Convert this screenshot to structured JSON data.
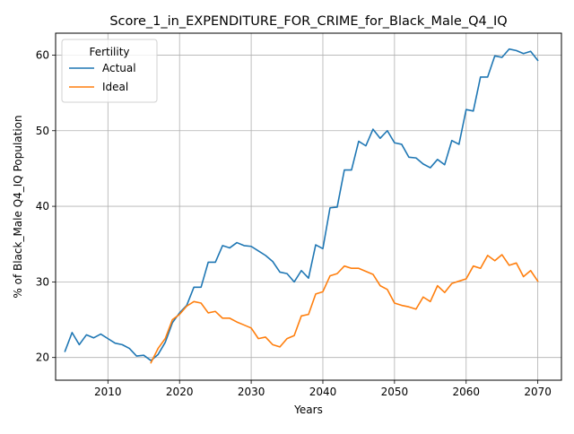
{
  "chart_data": {
    "type": "line",
    "title": "Score_1_in_EXPENDITURE_FOR_CRIME_for_Black_Male_Q4_IQ",
    "xlabel": "Years",
    "ylabel": "% of Black_Male Q4_IQ Population",
    "xlim": [
      2002.7,
      2073.3
    ],
    "ylim": [
      17.0,
      62.9
    ],
    "xticks": [
      2010,
      2020,
      2030,
      2040,
      2050,
      2060,
      2070
    ],
    "yticks": [
      20,
      30,
      40,
      50,
      60
    ],
    "grid": true,
    "legend": {
      "title": "Fertility",
      "placement": "upper left"
    },
    "x": [
      2004,
      2005,
      2006,
      2007,
      2008,
      2009,
      2010,
      2011,
      2012,
      2013,
      2014,
      2015,
      2016,
      2017,
      2018,
      2019,
      2020,
      2021,
      2022,
      2023,
      2024,
      2025,
      2026,
      2027,
      2028,
      2029,
      2030,
      2031,
      2032,
      2033,
      2034,
      2035,
      2036,
      2037,
      2038,
      2039,
      2040,
      2041,
      2042,
      2043,
      2044,
      2045,
      2046,
      2047,
      2048,
      2049,
      2050,
      2051,
      2052,
      2053,
      2054,
      2055,
      2056,
      2057,
      2058,
      2059,
      2060,
      2061,
      2062,
      2063,
      2064,
      2065,
      2066,
      2067,
      2068,
      2069,
      2070
    ],
    "series": [
      {
        "name": "Actual",
        "color": "#1f77b4",
        "values": [
          null,
          null,
          null,
          null,
          null,
          null,
          null,
          null,
          null,
          null,
          null,
          null,
          null,
          null,
          null,
          null,
          null,
          null,
          null,
          null,
          null,
          null,
          null,
          null,
          null,
          null,
          null,
          null,
          null,
          null,
          null,
          null,
          null,
          null,
          null,
          null,
          null,
          null,
          null,
          null,
          null,
          null,
          null,
          null,
          null,
          null,
          null,
          null,
          null,
          null,
          null,
          null,
          null,
          null,
          null,
          null,
          null,
          null,
          null,
          null,
          null,
          null,
          null,
          null,
          null,
          null,
          null
        ],
        "points": [
          [
            2004,
            20.8
          ],
          [
            2005,
            23.3
          ],
          [
            2006,
            21.7
          ],
          [
            2007,
            23.0
          ],
          [
            2008,
            22.6
          ],
          [
            2009,
            23.1
          ],
          [
            2010,
            22.5
          ],
          [
            2011,
            21.9
          ],
          [
            2012,
            21.7
          ],
          [
            2013,
            21.2
          ],
          [
            2014,
            20.2
          ],
          [
            2015,
            20.3
          ],
          [
            2016,
            19.6
          ],
          [
            2017,
            20.4
          ],
          [
            2018,
            22.0
          ],
          [
            2019,
            24.6
          ],
          [
            2020,
            25.9
          ],
          [
            2021,
            26.9
          ],
          [
            2022,
            29.3
          ],
          [
            2023,
            29.3
          ],
          [
            2024,
            32.6
          ],
          [
            2025,
            32.6
          ],
          [
            2026,
            34.8
          ],
          [
            2027,
            34.5
          ],
          [
            2028,
            35.2
          ],
          [
            2029,
            34.8
          ],
          [
            2030,
            34.7
          ],
          [
            2031,
            34.1
          ],
          [
            2032,
            33.5
          ],
          [
            2033,
            32.7
          ],
          [
            2034,
            31.3
          ],
          [
            2035,
            31.1
          ],
          [
            2036,
            30.0
          ],
          [
            2037,
            31.5
          ],
          [
            2038,
            30.5
          ],
          [
            2039,
            34.9
          ],
          [
            2040,
            34.4
          ],
          [
            2041,
            39.8
          ],
          [
            2042,
            39.9
          ],
          [
            2043,
            44.8
          ],
          [
            2044,
            44.8
          ],
          [
            2045,
            48.6
          ],
          [
            2046,
            48.0
          ],
          [
            2047,
            50.2
          ],
          [
            2048,
            49.0
          ],
          [
            2049,
            50.0
          ],
          [
            2050,
            48.4
          ],
          [
            2051,
            48.2
          ],
          [
            2052,
            46.5
          ],
          [
            2053,
            46.4
          ],
          [
            2054,
            45.6
          ],
          [
            2055,
            45.1
          ],
          [
            2056,
            46.2
          ],
          [
            2057,
            45.5
          ],
          [
            2058,
            48.7
          ],
          [
            2059,
            48.2
          ],
          [
            2060,
            52.8
          ],
          [
            2061,
            52.6
          ],
          [
            2062,
            57.1
          ],
          [
            2063,
            57.1
          ],
          [
            2064,
            59.9
          ],
          [
            2065,
            59.7
          ],
          [
            2066,
            60.8
          ],
          [
            2067,
            60.6
          ],
          [
            2068,
            60.2
          ],
          [
            2069,
            60.5
          ],
          [
            2070,
            59.3
          ]
        ]
      },
      {
        "name": "Ideal",
        "color": "#ff7f0e",
        "points": [
          [
            2016,
            19.3
          ],
          [
            2017,
            21.2
          ],
          [
            2018,
            22.5
          ],
          [
            2019,
            25.0
          ],
          [
            2020,
            25.7
          ],
          [
            2021,
            26.8
          ],
          [
            2022,
            27.4
          ],
          [
            2023,
            27.2
          ],
          [
            2024,
            25.9
          ],
          [
            2025,
            26.1
          ],
          [
            2026,
            25.2
          ],
          [
            2027,
            25.2
          ],
          [
            2028,
            24.7
          ],
          [
            2029,
            24.3
          ],
          [
            2030,
            23.9
          ],
          [
            2031,
            22.5
          ],
          [
            2032,
            22.7
          ],
          [
            2033,
            21.7
          ],
          [
            2034,
            21.4
          ],
          [
            2035,
            22.5
          ],
          [
            2036,
            22.9
          ],
          [
            2037,
            25.5
          ],
          [
            2038,
            25.7
          ],
          [
            2039,
            28.4
          ],
          [
            2040,
            28.7
          ],
          [
            2041,
            30.8
          ],
          [
            2042,
            31.1
          ],
          [
            2043,
            32.1
          ],
          [
            2044,
            31.8
          ],
          [
            2045,
            31.8
          ],
          [
            2046,
            31.4
          ],
          [
            2047,
            31.0
          ],
          [
            2048,
            29.5
          ],
          [
            2049,
            29.0
          ],
          [
            2050,
            27.2
          ],
          [
            2051,
            26.9
          ],
          [
            2052,
            26.7
          ],
          [
            2053,
            26.4
          ],
          [
            2054,
            28.0
          ],
          [
            2055,
            27.4
          ],
          [
            2056,
            29.5
          ],
          [
            2057,
            28.6
          ],
          [
            2058,
            29.8
          ],
          [
            2059,
            30.1
          ],
          [
            2060,
            30.4
          ],
          [
            2061,
            32.1
          ],
          [
            2062,
            31.8
          ],
          [
            2063,
            33.5
          ],
          [
            2064,
            32.8
          ],
          [
            2065,
            33.6
          ],
          [
            2066,
            32.2
          ],
          [
            2067,
            32.5
          ],
          [
            2068,
            30.7
          ],
          [
            2069,
            31.5
          ],
          [
            2070,
            30.1
          ]
        ]
      }
    ]
  }
}
